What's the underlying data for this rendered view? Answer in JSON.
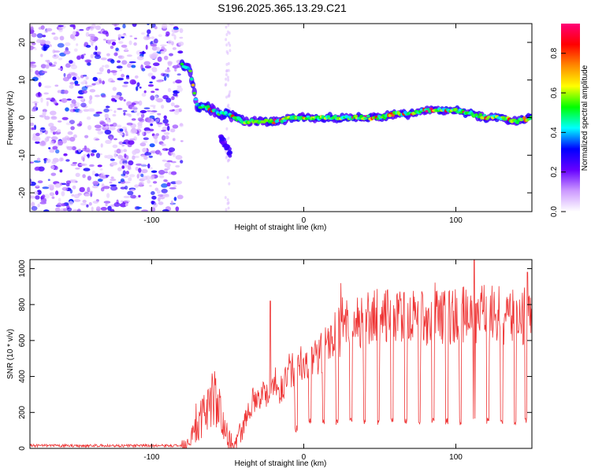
{
  "page": {
    "title": "S196.2025.365.13.29.C21"
  },
  "chart_data": [
    {
      "type": "heatmap",
      "title": "S196.2025.365.13.29.C21",
      "xlabel": "Height of straight line (km)",
      "ylabel": "Frequency (Hz)",
      "xlim": [
        -180,
        150
      ],
      "ylim": [
        -25,
        25
      ],
      "xticks": [
        -100,
        0,
        100
      ],
      "yticks": [
        -20,
        -10,
        0,
        10,
        20
      ],
      "colorbar": {
        "label": "Normalized spectral amplitude",
        "range": [
          0,
          0.95
        ],
        "ticks": [
          "0.0",
          "0.2",
          "0.4",
          "0.6",
          "0.8"
        ],
        "tick_values": [
          0,
          0.2,
          0.4,
          0.6,
          0.8
        ],
        "colors": [
          "#ffffff",
          "#cc99ff",
          "#6600ff",
          "#0000ff",
          "#00ffff",
          "#00ff00",
          "#ffff00",
          "#ff8800",
          "#ff0000",
          "#ff0077"
        ]
      },
      "noise_region_x": [
        -180,
        -80
      ],
      "ridge": {
        "x": [
          -80,
          -75,
          -70,
          -65,
          -60,
          -55,
          -50,
          -45,
          -40,
          -35,
          -30,
          -25,
          -20,
          -15,
          -10,
          -5,
          0,
          10,
          20,
          30,
          40,
          50,
          60,
          70,
          80,
          90,
          100,
          110,
          120,
          130,
          140,
          150
        ],
        "y": [
          14,
          13,
          3,
          3,
          2,
          1,
          1,
          0,
          -1,
          -1,
          -1,
          -1,
          -1,
          -1,
          0,
          0,
          0,
          0,
          0,
          0,
          0,
          0,
          1,
          1,
          2,
          2,
          2,
          1,
          0,
          0,
          -1,
          0
        ]
      },
      "branch": {
        "x": [
          -55,
          -50,
          -48
        ],
        "y": [
          -5,
          -8,
          -10
        ]
      }
    },
    {
      "type": "line",
      "xlabel": "Height of straight line (km)",
      "ylabel": "SNR (10 * v/v)",
      "xlim": [
        -180,
        150
      ],
      "ylim": [
        0,
        1050
      ],
      "xticks": [
        -100,
        0,
        100
      ],
      "yticks": [
        0,
        200,
        400,
        600,
        800,
        1000
      ],
      "color": "#ee3333",
      "series": [
        {
          "name": "SNR",
          "x": [
            -180,
            -80,
            -75,
            -70,
            -65,
            -60,
            -55,
            -50,
            -45,
            -40,
            -35,
            -30,
            -25,
            -20,
            -15,
            -10,
            -5,
            0,
            10,
            20,
            30,
            40,
            50,
            60,
            70,
            80,
            90,
            100,
            110,
            120,
            130,
            140,
            150
          ],
          "y": [
            15,
            15,
            60,
            120,
            200,
            300,
            200,
            60,
            20,
            120,
            250,
            300,
            300,
            380,
            320,
            430,
            420,
            450,
            500,
            630,
            700,
            720,
            730,
            720,
            720,
            730,
            730,
            740,
            740,
            750,
            740,
            720,
            740
          ]
        }
      ],
      "dips_x": [
        -5,
        4,
        13,
        22,
        31,
        40,
        49,
        58,
        67,
        76,
        85,
        94,
        103,
        112,
        121,
        130,
        139,
        146
      ],
      "spikes": [
        {
          "x": -22,
          "y": 820
        },
        {
          "x": 112,
          "y": 1050
        },
        {
          "x": 147,
          "y": 980
        }
      ]
    }
  ]
}
